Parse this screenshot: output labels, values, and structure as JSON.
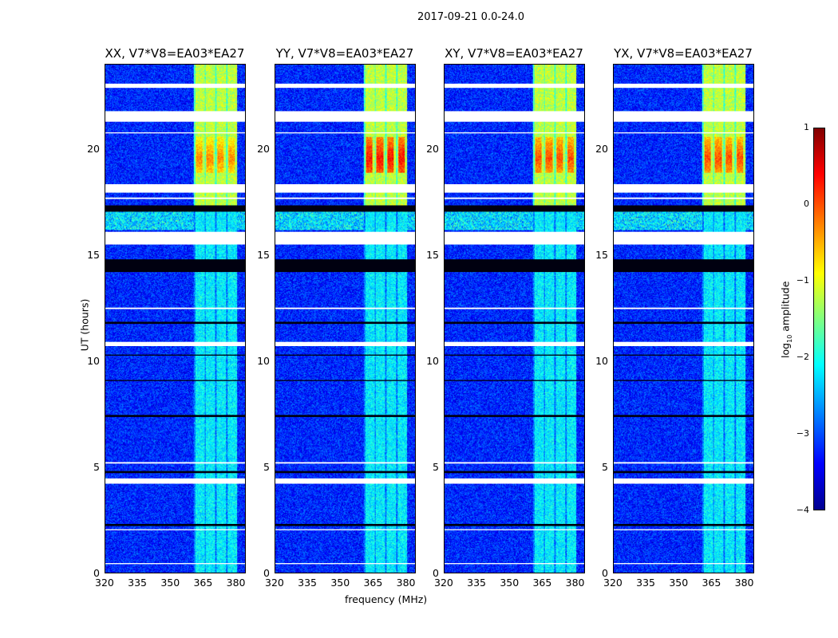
{
  "chart_data": {
    "type": "heatmap",
    "title": "2017-09-21 0.0-24.0",
    "xlabel": "frequency (MHz)",
    "ylabel": "UT (hours)",
    "xlim": [
      320,
      384.5
    ],
    "ylim": [
      0,
      24
    ],
    "xticks": [
      "320",
      "335",
      "350",
      "365",
      "380"
    ],
    "yticks": [
      "0",
      "5",
      "10",
      "15",
      "20"
    ],
    "xtick_values": [
      320,
      335,
      350,
      365,
      380
    ],
    "ytick_values": [
      0,
      5,
      10,
      15,
      20
    ],
    "panels": [
      {
        "title": "XX, V7*V8=EA03*EA27",
        "rfi_freq": [
          360.7,
          380.5
        ],
        "peak": -0.3
      },
      {
        "title": "YY, V7*V8=EA03*EA27",
        "rfi_freq": [
          360.7,
          380.5
        ],
        "peak": 0.3
      },
      {
        "title": "XY, V7*V8=EA03*EA27",
        "rfi_freq": [
          360.7,
          380.5
        ],
        "peak": 0.0
      },
      {
        "title": "YX, V7*V8=EA03*EA27",
        "rfi_freq": [
          360.7,
          380.5
        ],
        "peak": 0.0
      }
    ],
    "flagged_hours": [
      [
        22.9,
        23.1
      ],
      [
        21.3,
        21.8
      ],
      [
        20.75,
        20.8
      ],
      [
        17.95,
        18.35
      ],
      [
        17.65,
        17.72
      ],
      [
        15.5,
        16.1
      ],
      [
        12.45,
        12.52
      ],
      [
        10.7,
        10.9
      ],
      [
        5.15,
        5.22
      ],
      [
        4.2,
        4.45
      ],
      [
        2.0,
        2.05
      ],
      [
        0.4,
        0.45
      ]
    ],
    "dark_hours": [
      [
        17.05,
        17.35
      ],
      [
        14.2,
        14.8
      ],
      [
        11.75,
        11.85
      ],
      [
        10.25,
        10.3
      ],
      [
        9.05,
        9.1
      ],
      [
        7.35,
        7.45
      ],
      [
        4.7,
        4.8
      ],
      [
        2.2,
        2.3
      ]
    ],
    "colorbar": {
      "label": "log10 amplitude",
      "label_main": "log",
      "label_sub": "10",
      "label_rest": " amplitude",
      "ticks": [
        "1",
        "0",
        "−1",
        "−2",
        "−3",
        "−4"
      ],
      "tick_values": [
        1,
        0,
        -1,
        -2,
        -3,
        -4
      ],
      "range": [
        -4,
        1
      ]
    },
    "background_level": -3.2
  }
}
